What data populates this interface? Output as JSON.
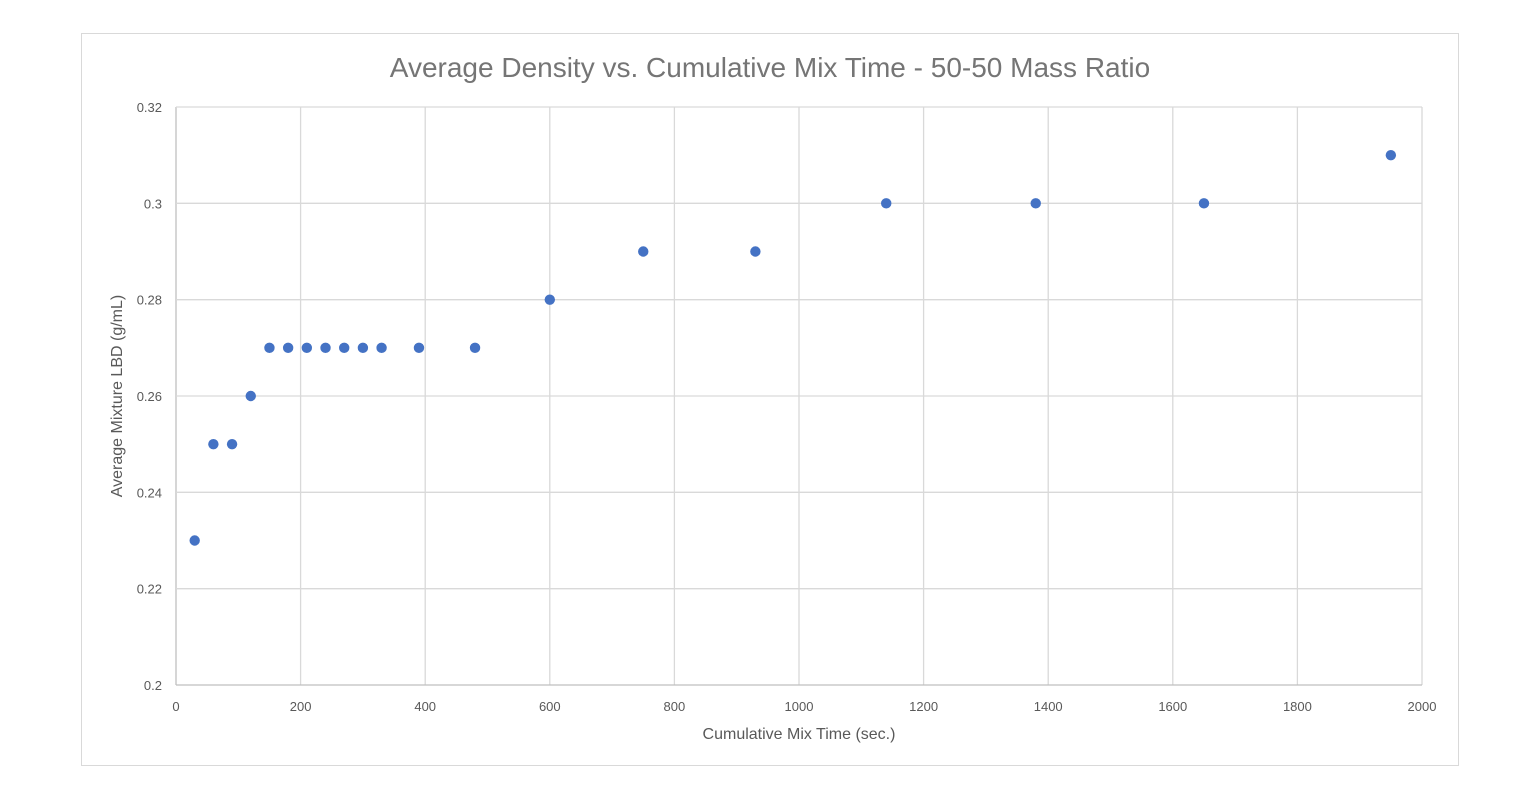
{
  "chart_data": {
    "type": "scatter",
    "title": "Average Density vs. Cumulative Mix Time - 50-50 Mass Ratio",
    "xlabel": "Cumulative Mix Time (sec.)",
    "ylabel": "Average Mixture LBD (g/mL)",
    "xlim": [
      0,
      2000
    ],
    "ylim": [
      0.2,
      0.32
    ],
    "xticks": [
      "0",
      "200",
      "400",
      "600",
      "800",
      "1000",
      "1200",
      "1400",
      "1600",
      "1800",
      "2000"
    ],
    "yticks": [
      "0.2",
      "0.22",
      "0.24",
      "0.26",
      "0.28",
      "0.3",
      "0.32"
    ],
    "grid": true,
    "marker_color": "#4472c4",
    "series": [
      {
        "x": [
          30,
          60,
          90,
          120,
          150,
          180,
          210,
          240,
          270,
          300,
          330,
          390,
          480,
          600,
          750,
          930,
          1140,
          1380,
          1650,
          1950
        ],
        "y": [
          0.23,
          0.25,
          0.25,
          0.26,
          0.27,
          0.27,
          0.27,
          0.27,
          0.27,
          0.27,
          0.27,
          0.27,
          0.27,
          0.28,
          0.29,
          0.29,
          0.3,
          0.3,
          0.3,
          0.31
        ]
      }
    ]
  }
}
